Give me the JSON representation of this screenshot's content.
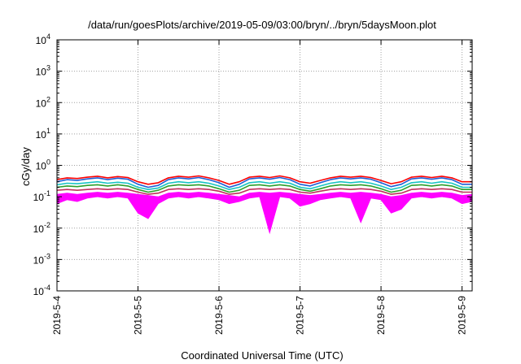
{
  "chart_data": {
    "type": "line",
    "title": "/data/run/goesPlots/archive/2019-05-09/03:00/bryn/../bryn/5daysMoon.plot",
    "xlabel": "Coordinated Universal Time (UTC)",
    "ylabel": "cGy/day",
    "x_scale": "time",
    "y_scale": "log",
    "xlim": [
      "2019-05-04T00:00",
      "2019-05-09T03:00"
    ],
    "ylim": [
      0.0001,
      10000
    ],
    "x_ticks": [
      "2019-5-4",
      "2019-5-5",
      "2019-5-6",
      "2019-5-7",
      "2019-5-8",
      "2019-5-9"
    ],
    "y_ticks": [
      {
        "value": 0.0001,
        "base": "10",
        "exp": "-4"
      },
      {
        "value": 0.001,
        "base": "10",
        "exp": "-3"
      },
      {
        "value": 0.01,
        "base": "10",
        "exp": "-2"
      },
      {
        "value": 0.1,
        "base": "10",
        "exp": "-1"
      },
      {
        "value": 1,
        "base": "10",
        "exp": "0"
      },
      {
        "value": 10,
        "base": "10",
        "exp": "1"
      },
      {
        "value": 100,
        "base": "10",
        "exp": "2"
      },
      {
        "value": 1000,
        "base": "10",
        "exp": "3"
      },
      {
        "value": 10000,
        "base": "10",
        "exp": "4"
      }
    ],
    "grid": true,
    "legend": "none",
    "series": [
      {
        "color": "#ff00ff",
        "style": "filled-band",
        "x": [
          "2019-05-04T00:00",
          "2019-05-04T03:00",
          "2019-05-04T06:00",
          "2019-05-04T09:00",
          "2019-05-04T12:00",
          "2019-05-04T15:00",
          "2019-05-04T18:00",
          "2019-05-04T21:00",
          "2019-05-05T00:00",
          "2019-05-05T03:00",
          "2019-05-05T06:00",
          "2019-05-05T09:00",
          "2019-05-05T12:00",
          "2019-05-05T15:00",
          "2019-05-05T18:00",
          "2019-05-05T21:00",
          "2019-05-06T00:00",
          "2019-05-06T03:00",
          "2019-05-06T06:00",
          "2019-05-06T09:00",
          "2019-05-06T12:00",
          "2019-05-06T15:00",
          "2019-05-06T18:00",
          "2019-05-06T21:00",
          "2019-05-07T00:00",
          "2019-05-07T03:00",
          "2019-05-07T06:00",
          "2019-05-07T09:00",
          "2019-05-07T12:00",
          "2019-05-07T15:00",
          "2019-05-07T18:00",
          "2019-05-07T21:00",
          "2019-05-08T00:00",
          "2019-05-08T03:00",
          "2019-05-08T06:00",
          "2019-05-08T09:00",
          "2019-05-08T12:00",
          "2019-05-08T15:00",
          "2019-05-08T18:00",
          "2019-05-08T21:00",
          "2019-05-09T00:00",
          "2019-05-09T03:00"
        ],
        "upper": [
          0.12,
          0.13,
          0.12,
          0.13,
          0.14,
          0.13,
          0.14,
          0.13,
          0.12,
          0.11,
          0.1,
          0.13,
          0.14,
          0.13,
          0.14,
          0.13,
          0.12,
          0.11,
          0.1,
          0.13,
          0.14,
          0.13,
          0.14,
          0.13,
          0.12,
          0.11,
          0.12,
          0.13,
          0.14,
          0.13,
          0.14,
          0.13,
          0.12,
          0.1,
          0.11,
          0.13,
          0.14,
          0.13,
          0.14,
          0.13,
          0.11,
          0.12
        ],
        "lower": [
          0.06,
          0.08,
          0.07,
          0.09,
          0.1,
          0.09,
          0.1,
          0.09,
          0.03,
          0.02,
          0.06,
          0.09,
          0.1,
          0.09,
          0.1,
          0.09,
          0.08,
          0.06,
          0.07,
          0.09,
          0.1,
          0.007,
          0.1,
          0.09,
          0.05,
          0.06,
          0.08,
          0.09,
          0.1,
          0.09,
          0.015,
          0.09,
          0.08,
          0.03,
          0.04,
          0.09,
          0.1,
          0.09,
          0.1,
          0.09,
          0.06,
          0.07
        ]
      },
      {
        "color": "#ff0000",
        "x": [
          "2019-05-04T00:00",
          "2019-05-04T03:00",
          "2019-05-04T06:00",
          "2019-05-04T09:00",
          "2019-05-04T12:00",
          "2019-05-04T15:00",
          "2019-05-04T18:00",
          "2019-05-04T21:00",
          "2019-05-05T00:00",
          "2019-05-05T03:00",
          "2019-05-05T06:00",
          "2019-05-05T09:00",
          "2019-05-05T12:00",
          "2019-05-05T15:00",
          "2019-05-05T18:00",
          "2019-05-05T21:00",
          "2019-05-06T00:00",
          "2019-05-06T03:00",
          "2019-05-06T06:00",
          "2019-05-06T09:00",
          "2019-05-06T12:00",
          "2019-05-06T15:00",
          "2019-05-06T18:00",
          "2019-05-06T21:00",
          "2019-05-07T00:00",
          "2019-05-07T03:00",
          "2019-05-07T06:00",
          "2019-05-07T09:00",
          "2019-05-07T12:00",
          "2019-05-07T15:00",
          "2019-05-07T18:00",
          "2019-05-07T21:00",
          "2019-05-08T00:00",
          "2019-05-08T03:00",
          "2019-05-08T06:00",
          "2019-05-08T09:00",
          "2019-05-08T12:00",
          "2019-05-08T15:00",
          "2019-05-08T18:00",
          "2019-05-08T21:00",
          "2019-05-09T00:00",
          "2019-05-09T03:00"
        ],
        "y": [
          0.35,
          0.4,
          0.38,
          0.42,
          0.45,
          0.4,
          0.44,
          0.41,
          0.3,
          0.25,
          0.28,
          0.4,
          0.45,
          0.42,
          0.46,
          0.4,
          0.33,
          0.25,
          0.3,
          0.42,
          0.45,
          0.41,
          0.46,
          0.4,
          0.3,
          0.27,
          0.33,
          0.4,
          0.45,
          0.42,
          0.45,
          0.41,
          0.33,
          0.26,
          0.3,
          0.42,
          0.45,
          0.41,
          0.45,
          0.4,
          0.3,
          0.3
        ]
      },
      {
        "color": "#1f5ed6",
        "x": [
          "2019-05-04T00:00",
          "2019-05-04T03:00",
          "2019-05-04T06:00",
          "2019-05-04T09:00",
          "2019-05-04T12:00",
          "2019-05-04T15:00",
          "2019-05-04T18:00",
          "2019-05-04T21:00",
          "2019-05-05T00:00",
          "2019-05-05T03:00",
          "2019-05-05T06:00",
          "2019-05-05T09:00",
          "2019-05-05T12:00",
          "2019-05-05T15:00",
          "2019-05-05T18:00",
          "2019-05-05T21:00",
          "2019-05-06T00:00",
          "2019-05-06T03:00",
          "2019-05-06T06:00",
          "2019-05-06T09:00",
          "2019-05-06T12:00",
          "2019-05-06T15:00",
          "2019-05-06T18:00",
          "2019-05-06T21:00",
          "2019-05-07T00:00",
          "2019-05-07T03:00",
          "2019-05-07T06:00",
          "2019-05-07T09:00",
          "2019-05-07T12:00",
          "2019-05-07T15:00",
          "2019-05-07T18:00",
          "2019-05-07T21:00",
          "2019-05-08T00:00",
          "2019-05-08T03:00",
          "2019-05-08T06:00",
          "2019-05-08T09:00",
          "2019-05-08T12:00",
          "2019-05-08T15:00",
          "2019-05-08T18:00",
          "2019-05-08T21:00",
          "2019-05-09T00:00",
          "2019-05-09T03:00"
        ],
        "y": [
          0.3,
          0.35,
          0.33,
          0.37,
          0.4,
          0.35,
          0.39,
          0.36,
          0.25,
          0.2,
          0.23,
          0.35,
          0.4,
          0.37,
          0.41,
          0.35,
          0.28,
          0.2,
          0.25,
          0.37,
          0.4,
          0.36,
          0.41,
          0.35,
          0.25,
          0.22,
          0.28,
          0.35,
          0.4,
          0.37,
          0.4,
          0.36,
          0.28,
          0.21,
          0.25,
          0.37,
          0.4,
          0.36,
          0.4,
          0.35,
          0.25,
          0.25
        ]
      },
      {
        "color": "#18c4c4",
        "x": [
          "2019-05-04T00:00",
          "2019-05-04T03:00",
          "2019-05-04T06:00",
          "2019-05-04T09:00",
          "2019-05-04T12:00",
          "2019-05-04T15:00",
          "2019-05-04T18:00",
          "2019-05-04T21:00",
          "2019-05-05T00:00",
          "2019-05-05T03:00",
          "2019-05-05T06:00",
          "2019-05-05T09:00",
          "2019-05-05T12:00",
          "2019-05-05T15:00",
          "2019-05-05T18:00",
          "2019-05-05T21:00",
          "2019-05-06T00:00",
          "2019-05-06T03:00",
          "2019-05-06T06:00",
          "2019-05-06T09:00",
          "2019-05-06T12:00",
          "2019-05-06T15:00",
          "2019-05-06T18:00",
          "2019-05-06T21:00",
          "2019-05-07T00:00",
          "2019-05-07T03:00",
          "2019-05-07T06:00",
          "2019-05-07T09:00",
          "2019-05-07T12:00",
          "2019-05-07T15:00",
          "2019-05-07T18:00",
          "2019-05-07T21:00",
          "2019-05-08T00:00",
          "2019-05-08T03:00",
          "2019-05-08T06:00",
          "2019-05-08T09:00",
          "2019-05-08T12:00",
          "2019-05-08T15:00",
          "2019-05-08T18:00",
          "2019-05-08T21:00",
          "2019-05-09T00:00",
          "2019-05-09T03:00"
        ],
        "y": [
          0.24,
          0.27,
          0.26,
          0.28,
          0.3,
          0.27,
          0.29,
          0.27,
          0.2,
          0.17,
          0.19,
          0.27,
          0.3,
          0.28,
          0.3,
          0.27,
          0.22,
          0.17,
          0.2,
          0.28,
          0.3,
          0.27,
          0.3,
          0.27,
          0.2,
          0.18,
          0.22,
          0.27,
          0.3,
          0.28,
          0.3,
          0.27,
          0.22,
          0.17,
          0.2,
          0.28,
          0.3,
          0.27,
          0.3,
          0.27,
          0.2,
          0.2
        ]
      },
      {
        "color": "#2ca02c",
        "x": [
          "2019-05-04T00:00",
          "2019-05-04T03:00",
          "2019-05-04T06:00",
          "2019-05-04T09:00",
          "2019-05-04T12:00",
          "2019-05-04T15:00",
          "2019-05-04T18:00",
          "2019-05-04T21:00",
          "2019-05-05T00:00",
          "2019-05-05T03:00",
          "2019-05-05T06:00",
          "2019-05-05T09:00",
          "2019-05-05T12:00",
          "2019-05-05T15:00",
          "2019-05-05T18:00",
          "2019-05-05T21:00",
          "2019-05-06T00:00",
          "2019-05-06T03:00",
          "2019-05-06T06:00",
          "2019-05-06T09:00",
          "2019-05-06T12:00",
          "2019-05-06T15:00",
          "2019-05-06T18:00",
          "2019-05-06T21:00",
          "2019-05-07T00:00",
          "2019-05-07T03:00",
          "2019-05-07T06:00",
          "2019-05-07T09:00",
          "2019-05-07T12:00",
          "2019-05-07T15:00",
          "2019-05-07T18:00",
          "2019-05-07T21:00",
          "2019-05-08T00:00",
          "2019-05-08T03:00",
          "2019-05-08T06:00",
          "2019-05-08T09:00",
          "2019-05-08T12:00",
          "2019-05-08T15:00",
          "2019-05-08T18:00",
          "2019-05-08T21:00",
          "2019-05-09T00:00",
          "2019-05-09T03:00"
        ],
        "y": [
          0.2,
          0.22,
          0.21,
          0.23,
          0.24,
          0.22,
          0.24,
          0.22,
          0.17,
          0.14,
          0.16,
          0.22,
          0.24,
          0.23,
          0.24,
          0.22,
          0.18,
          0.14,
          0.16,
          0.23,
          0.24,
          0.22,
          0.24,
          0.22,
          0.17,
          0.15,
          0.18,
          0.22,
          0.24,
          0.23,
          0.24,
          0.22,
          0.18,
          0.14,
          0.16,
          0.23,
          0.24,
          0.22,
          0.24,
          0.22,
          0.17,
          0.17
        ]
      },
      {
        "color": "#c0305a",
        "x": [
          "2019-05-04T00:00",
          "2019-05-04T03:00",
          "2019-05-04T06:00",
          "2019-05-04T09:00",
          "2019-05-04T12:00",
          "2019-05-04T15:00",
          "2019-05-04T18:00",
          "2019-05-04T21:00",
          "2019-05-05T00:00",
          "2019-05-05T03:00",
          "2019-05-05T06:00",
          "2019-05-05T09:00",
          "2019-05-05T12:00",
          "2019-05-05T15:00",
          "2019-05-05T18:00",
          "2019-05-05T21:00",
          "2019-05-06T00:00",
          "2019-05-06T03:00",
          "2019-05-06T06:00",
          "2019-05-06T09:00",
          "2019-05-06T12:00",
          "2019-05-06T15:00",
          "2019-05-06T18:00",
          "2019-05-06T21:00",
          "2019-05-07T00:00",
          "2019-05-07T03:00",
          "2019-05-07T06:00",
          "2019-05-07T09:00",
          "2019-05-07T12:00",
          "2019-05-07T15:00",
          "2019-05-07T18:00",
          "2019-05-07T21:00",
          "2019-05-08T00:00",
          "2019-05-08T03:00",
          "2019-05-08T06:00",
          "2019-05-08T09:00",
          "2019-05-08T12:00",
          "2019-05-08T15:00",
          "2019-05-08T18:00",
          "2019-05-08T21:00",
          "2019-05-09T00:00",
          "2019-05-09T03:00"
        ],
        "y": [
          0.16,
          0.17,
          0.16,
          0.17,
          0.18,
          0.17,
          0.18,
          0.17,
          0.14,
          0.12,
          0.13,
          0.17,
          0.18,
          0.17,
          0.18,
          0.17,
          0.15,
          0.12,
          0.13,
          0.17,
          0.18,
          0.17,
          0.18,
          0.17,
          0.14,
          0.13,
          0.15,
          0.17,
          0.18,
          0.17,
          0.18,
          0.17,
          0.15,
          0.12,
          0.13,
          0.17,
          0.18,
          0.17,
          0.18,
          0.17,
          0.14,
          0.14
        ]
      }
    ]
  }
}
